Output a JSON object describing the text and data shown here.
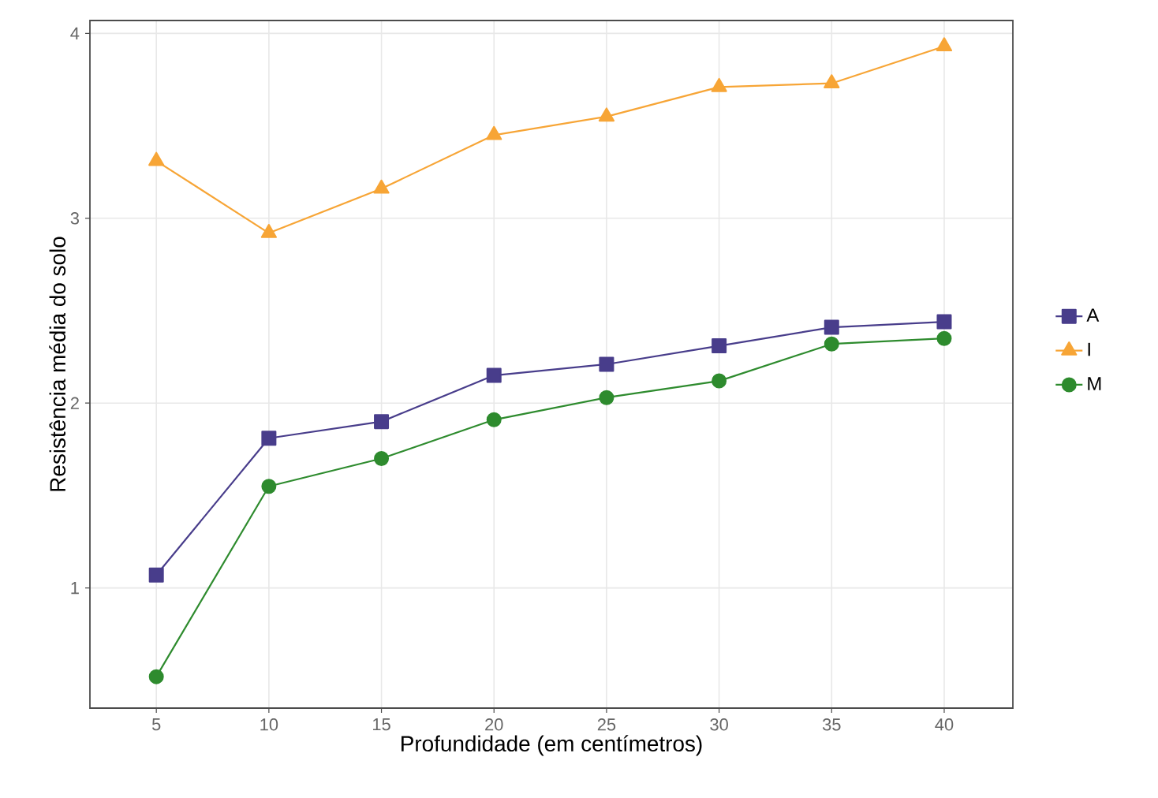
{
  "chart_data": {
    "type": "line",
    "xlabel": "Profundidade (em centímetros)",
    "ylabel": "Resistência média do solo",
    "x": [
      5,
      10,
      15,
      20,
      25,
      30,
      35,
      40
    ],
    "series": [
      {
        "name": "A",
        "color": "#483d8b",
        "marker": "square",
        "values": [
          1.07,
          1.81,
          1.9,
          2.15,
          2.21,
          2.31,
          2.41,
          2.44
        ]
      },
      {
        "name": "I",
        "color": "#f7a536",
        "marker": "triangle",
        "values": [
          3.31,
          2.92,
          3.16,
          3.45,
          3.55,
          3.71,
          3.73,
          3.93
        ]
      },
      {
        "name": "M",
        "color": "#2e8b2e",
        "marker": "circle",
        "values": [
          0.52,
          1.55,
          1.7,
          1.91,
          2.03,
          2.12,
          2.32,
          2.35
        ]
      }
    ],
    "xlim": [
      2.05,
      43.05
    ],
    "ylim": [
      0.35,
      4.07
    ],
    "xticks": [
      5,
      10,
      15,
      20,
      25,
      30,
      35,
      40
    ],
    "yticks": [
      1,
      2,
      3,
      4
    ],
    "grid": true,
    "legend": "right",
    "line_style": "solid"
  }
}
